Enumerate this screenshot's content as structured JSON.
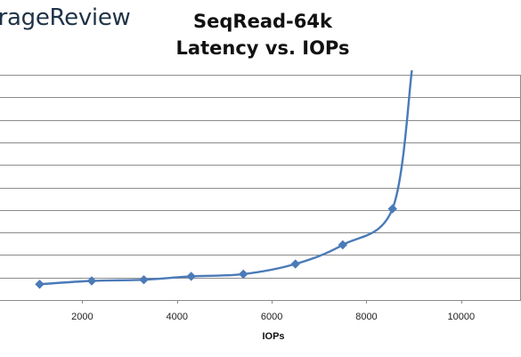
{
  "watermark": "orageReview",
  "chart_data": {
    "type": "line",
    "title": "SeqRead-64k",
    "subtitle": "Latency vs. IOPs",
    "xlabel": "IOPs",
    "ylabel": "",
    "xlim": [
      0,
      11000
    ],
    "ylim": [
      0,
      10
    ],
    "grid": true,
    "x_ticks": [
      2000,
      4000,
      6000,
      8000,
      10000
    ],
    "x_tick_labels": [
      "2000",
      "4000",
      "6000",
      "8000",
      "10000"
    ],
    "series": [
      {
        "color": "#4a7ab8",
        "points": [
          {
            "x": 1100,
            "y": 0.7
          },
          {
            "x": 2200,
            "y": 0.85
          },
          {
            "x": 3300,
            "y": 0.9
          },
          {
            "x": 4300,
            "y": 1.05
          },
          {
            "x": 5400,
            "y": 1.15
          },
          {
            "x": 6500,
            "y": 1.6
          },
          {
            "x": 7500,
            "y": 2.45
          },
          {
            "x": 8550,
            "y": 4.05
          }
        ],
        "tail": {
          "x": 8960,
          "y": 10.2
        }
      }
    ]
  }
}
